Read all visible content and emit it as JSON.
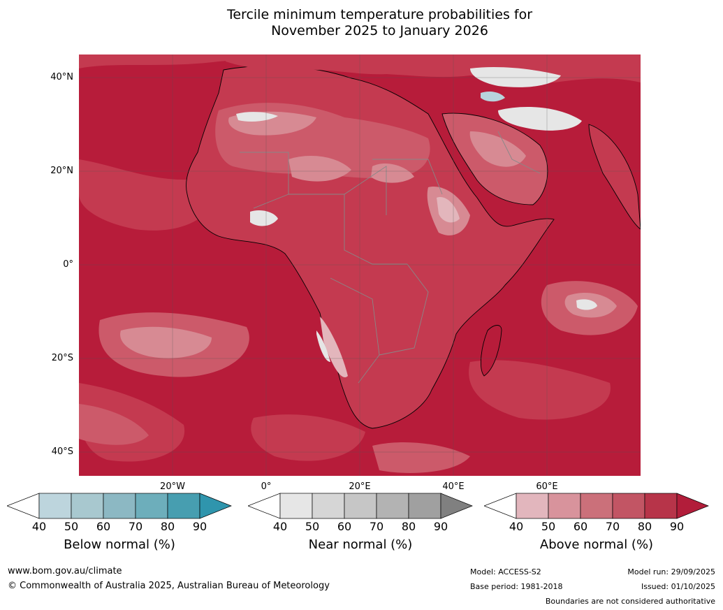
{
  "title": {
    "line1": "Tercile minimum temperature probabilities for",
    "line2": "November 2025 to January 2026"
  },
  "map": {
    "region": "Africa",
    "lat_labels": [
      "40°N",
      "20°N",
      "0°",
      "20°S",
      "40°S"
    ],
    "lon_labels": [
      "20°W",
      "0°",
      "20°E",
      "40°E",
      "60°E"
    ],
    "palette": {
      "above_strong": "#b71c3a",
      "above_80": "#c43a50",
      "above_70": "#cc5a6a",
      "above_60": "#d78a93",
      "above_50": "#e3b6bc",
      "near": "#e6e6e6",
      "below": "#b8d3dc",
      "grid": "#555555",
      "border": "#888888",
      "coast": "#000000"
    }
  },
  "colorbars": [
    {
      "name": "Below normal (%)",
      "ticks": [
        "40",
        "50",
        "60",
        "70",
        "80",
        "90"
      ],
      "colors": [
        "#ffffff",
        "#bdd5dd",
        "#a8c8cf",
        "#8cb8c3",
        "#6daebb",
        "#479eb0",
        "#2f95ad"
      ]
    },
    {
      "name": "Near normal (%)",
      "ticks": [
        "40",
        "50",
        "60",
        "70",
        "80",
        "90"
      ],
      "colors": [
        "#ffffff",
        "#e6e6e6",
        "#d6d6d6",
        "#c6c6c6",
        "#b3b3b3",
        "#a0a0a0",
        "#808080"
      ]
    },
    {
      "name": "Above normal (%)",
      "ticks": [
        "40",
        "50",
        "60",
        "70",
        "80",
        "90"
      ],
      "colors": [
        "#ffffff",
        "#e2b6bd",
        "#d8939c",
        "#cb707a",
        "#c25564",
        "#b73449",
        "#b21d3a"
      ]
    }
  ],
  "footer": {
    "website": "www.bom.gov.au/climate",
    "copyright": "© Commonwealth of Australia 2025, Australian Bureau of Meteorology",
    "model": "Model: ACCESS-S2",
    "base_period": "Base period: 1981-2018",
    "model_run": "Model run: 29/09/2025",
    "issued": "Issued: 01/10/2025",
    "disclaimer": "Boundaries are not considered authoritative"
  }
}
